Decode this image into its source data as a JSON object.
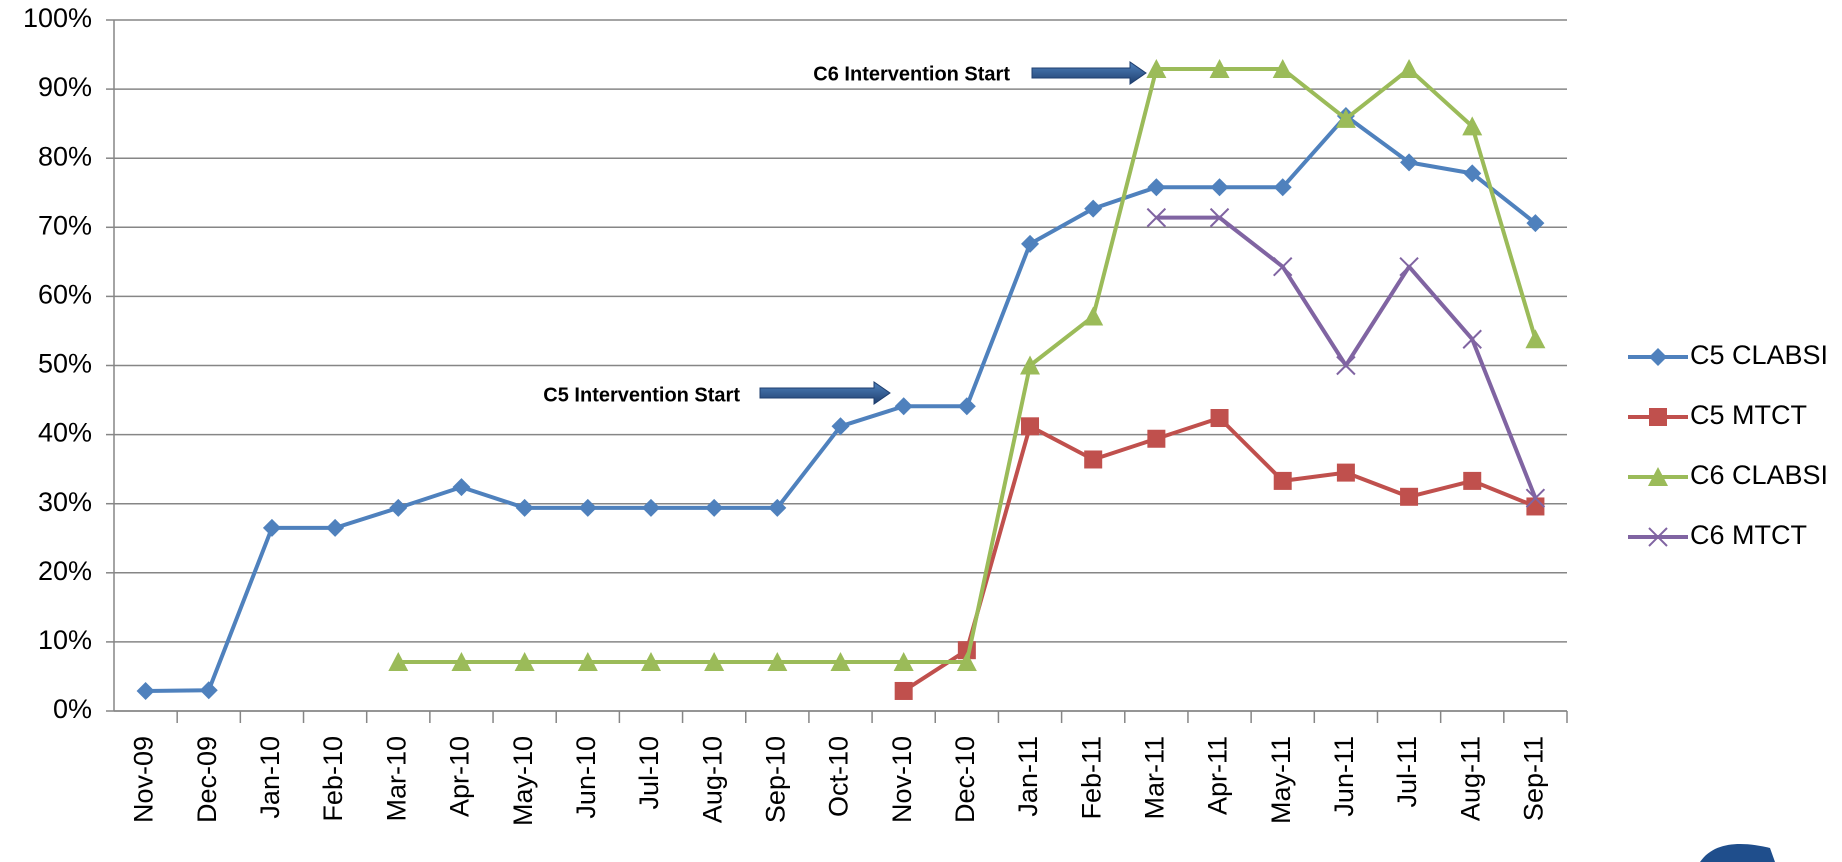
{
  "chart_data": {
    "type": "line",
    "categories": [
      "Nov-09",
      "Dec-09",
      "Jan-10",
      "Feb-10",
      "Mar-10",
      "Apr-10",
      "May-10",
      "Jun-10",
      "Jul-10",
      "Aug-10",
      "Sep-10",
      "Oct-10",
      "Nov-10",
      "Dec-10",
      "Jan-11",
      "Feb-11",
      "Mar-11",
      "Apr-11",
      "May-11",
      "Jun-11",
      "Jul-11",
      "Aug-11",
      "Sep-11"
    ],
    "series": [
      {
        "name": "C5 CLABSI",
        "color": "#4f81bd",
        "marker": "diamond",
        "values": [
          2.9,
          3,
          26.5,
          26.5,
          29.4,
          32.4,
          29.4,
          29.4,
          29.4,
          29.4,
          29.4,
          41.2,
          44.1,
          44.1,
          67.6,
          72.7,
          75.8,
          75.8,
          75.8,
          86.1,
          79.4,
          77.8,
          70.6
        ]
      },
      {
        "name": "C5 MTCT",
        "color": "#c0504d",
        "marker": "square",
        "values": [
          null,
          null,
          null,
          null,
          null,
          null,
          null,
          null,
          null,
          null,
          null,
          null,
          2.9,
          8.8,
          41.2,
          36.4,
          39.4,
          42.4,
          33.3,
          34.5,
          31,
          33.3,
          29.6
        ]
      },
      {
        "name": "C6 CLABSI",
        "color": "#9bbb59",
        "marker": "triangle",
        "values": [
          null,
          null,
          null,
          null,
          7.1,
          7.1,
          7.1,
          7.1,
          7.1,
          7.1,
          7.1,
          7.1,
          7.1,
          7.1,
          50,
          57.1,
          92.9,
          92.9,
          92.9,
          85.7,
          92.9,
          84.6,
          53.8
        ]
      },
      {
        "name": "C6 MTCT",
        "color": "#8064a2",
        "marker": "x",
        "values": [
          null,
          null,
          null,
          null,
          null,
          null,
          null,
          null,
          null,
          null,
          null,
          null,
          null,
          null,
          null,
          null,
          71.4,
          71.4,
          64.3,
          50,
          64.3,
          53.8,
          30.8
        ]
      }
    ],
    "annotations": [
      "C6 Intervention Start",
      "C5 Intervention Start"
    ],
    "ylim": [
      0,
      100
    ],
    "yticks": [
      {
        "value": 0,
        "label": "0%"
      },
      {
        "value": 10,
        "label": "10%"
      },
      {
        "value": 20,
        "label": "20%"
      },
      {
        "value": 30,
        "label": "30%"
      },
      {
        "value": 40,
        "label": "40%"
      },
      {
        "value": 50,
        "label": "50%"
      },
      {
        "value": 60,
        "label": "60%"
      },
      {
        "value": 70,
        "label": "70%"
      },
      {
        "value": 80,
        "label": "80%"
      },
      {
        "value": 90,
        "label": "90%"
      },
      {
        "value": 100,
        "label": "100%"
      }
    ],
    "grid": true,
    "legend": "right"
  }
}
